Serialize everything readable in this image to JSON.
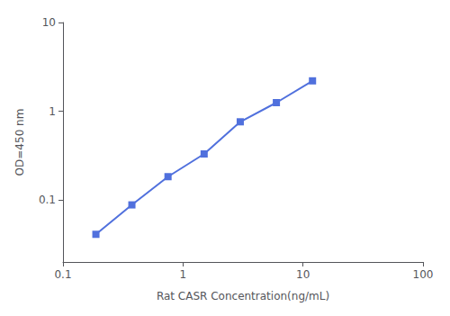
{
  "chart_data": {
    "type": "line",
    "x": [
      0.188,
      0.375,
      0.75,
      1.5,
      3.0,
      6.0,
      12.0
    ],
    "values": [
      0.041,
      0.088,
      0.183,
      0.33,
      0.76,
      1.25,
      2.2
    ],
    "xlabel": "Rat CASR Concentration(ng/mL)",
    "ylabel": "OD=450 nm",
    "xlim": [
      0.1,
      100
    ],
    "ylim": [
      0.02,
      10
    ],
    "xticks": [
      0.1,
      1,
      10,
      100
    ],
    "yticks": [
      0.1,
      1,
      10
    ],
    "log": true,
    "grid": false,
    "marker": "square"
  }
}
